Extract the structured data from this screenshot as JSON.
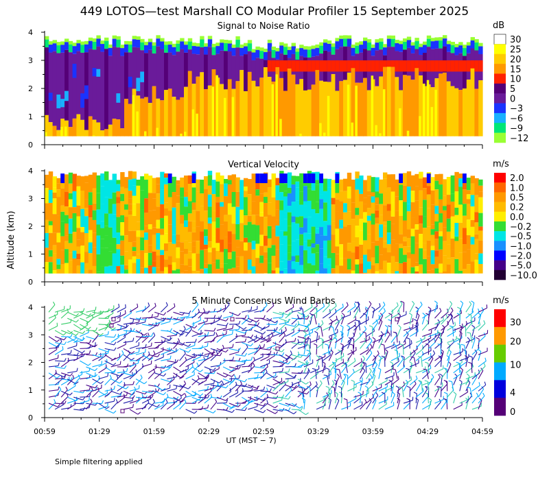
{
  "title": "449 LOTOS—test Marshall CO Modular Profiler 15 September 2025",
  "y_axis_label": "Altitude (km)",
  "x_axis_label": "UT  (MST − 7)",
  "footnote": "Simple filtering applied",
  "x_ticks": [
    "00:59",
    "01:29",
    "01:59",
    "02:29",
    "02:59",
    "03:29",
    "03:59",
    "04:29",
    "04:59"
  ],
  "chart_data": [
    {
      "type": "heatmap",
      "title": "Signal to Noise Ratio",
      "unit": "dB",
      "ylim": [
        0,
        4
      ],
      "y_ticks": [
        "0",
        "1",
        "2",
        "3",
        "4"
      ],
      "colorbar_labels": [
        "30",
        "25",
        "20",
        "15",
        "10",
        "5",
        "0",
        "−3",
        "−6",
        "−9",
        "−12"
      ],
      "colors": [
        "#ffffff",
        "#ffff00",
        "#ffcc00",
        "#ff9900",
        "#ff2200",
        "#550077",
        "#6a1b9a",
        "#1a33ff",
        "#19b0ff",
        "#00e676",
        "#99ff33"
      ]
    },
    {
      "type": "heatmap",
      "title": "Vertical Velocity",
      "unit": "m/s",
      "ylim": [
        0,
        4
      ],
      "y_ticks": [
        "0",
        "1",
        "2",
        "3",
        "4"
      ],
      "colorbar_labels": [
        "2.0",
        "1.0",
        "0.5",
        "0.2",
        "0.0",
        "−0.2",
        "−0.5",
        "−1.0",
        "−2.0",
        "−5.0",
        "−10.0"
      ],
      "colors": [
        "#ff0000",
        "#ff6600",
        "#ff9900",
        "#ffbb00",
        "#ffee00",
        "#33dd33",
        "#00e5e5",
        "#1a90ff",
        "#0000ff",
        "#440088",
        "#220033"
      ]
    },
    {
      "type": "wind_barbs",
      "title": "5 Minute Consensus Wind Barbs",
      "unit": "m/s",
      "ylim": [
        0,
        4
      ],
      "y_ticks": [
        "0",
        "1",
        "2",
        "3",
        "4"
      ],
      "colorbar_labels": [
        "30",
        "20",
        "10",
        "4",
        "0"
      ],
      "colors": [
        "#ff0000",
        "#ff9900",
        "#66cc00",
        "#00aaff",
        "#0000dd",
        "#550077"
      ]
    }
  ]
}
